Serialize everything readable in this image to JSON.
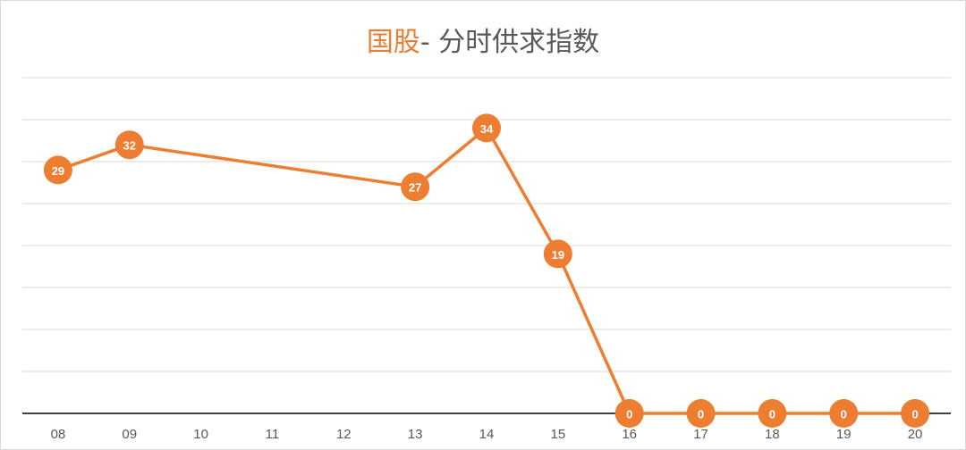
{
  "title": {
    "highlight": "国股",
    "rest": "- 分时供求指数"
  },
  "colors": {
    "series": "#ed7d31",
    "grid": "#d9d9d9",
    "axis": "#404040",
    "title_highlight": "#ed7d31",
    "title_text": "#595959"
  },
  "chart_data": {
    "type": "line",
    "title": "国股- 分时供求指数",
    "categories": [
      "08",
      "09",
      "10",
      "11",
      "12",
      "13",
      "14",
      "15",
      "16",
      "17",
      "18",
      "19",
      "20"
    ],
    "series": [
      {
        "values": [
          29,
          32,
          null,
          null,
          null,
          27,
          34,
          19,
          0,
          0,
          0,
          0,
          0
        ]
      }
    ],
    "ylim": [
      0,
      40
    ],
    "grid": true,
    "data_labels": true,
    "legend": false
  }
}
